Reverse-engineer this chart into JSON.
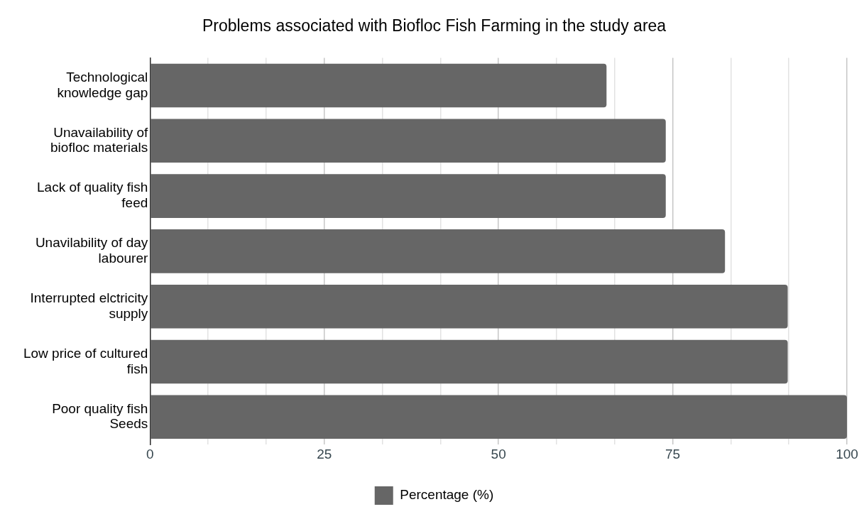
{
  "chart_data": {
    "type": "bar",
    "orientation": "horizontal",
    "title": "Problems associated with Biofloc Fish Farming in the study area",
    "categories": [
      "Technological knowledge gap",
      "Unavailability of biofloc materials",
      "Lack of quality fish feed",
      "Unavilability of day labourer",
      "Interrupted elctricity supply",
      "Low price of cultured fish",
      "Poor quality fish Seeds"
    ],
    "series": [
      {
        "name": "Percentage (%)",
        "color": "#666666",
        "values": [
          65.5,
          74,
          74,
          82.5,
          91.5,
          91.5,
          100
        ]
      }
    ],
    "xlim": [
      0,
      100
    ],
    "xticks": [
      0,
      {
        "value": 8.33,
        "label": null
      },
      {
        "value": 16.67,
        "label": null
      },
      25,
      {
        "value": 33.33,
        "label": null
      },
      {
        "value": 41.67,
        "label": null
      },
      50,
      {
        "value": 58.33,
        "label": null
      },
      {
        "value": 66.67,
        "label": null
      },
      75,
      {
        "value": 83.33,
        "label": null
      },
      {
        "value": 91.67,
        "label": null
      },
      100
    ],
    "grid": "x",
    "legend": "bottom"
  }
}
